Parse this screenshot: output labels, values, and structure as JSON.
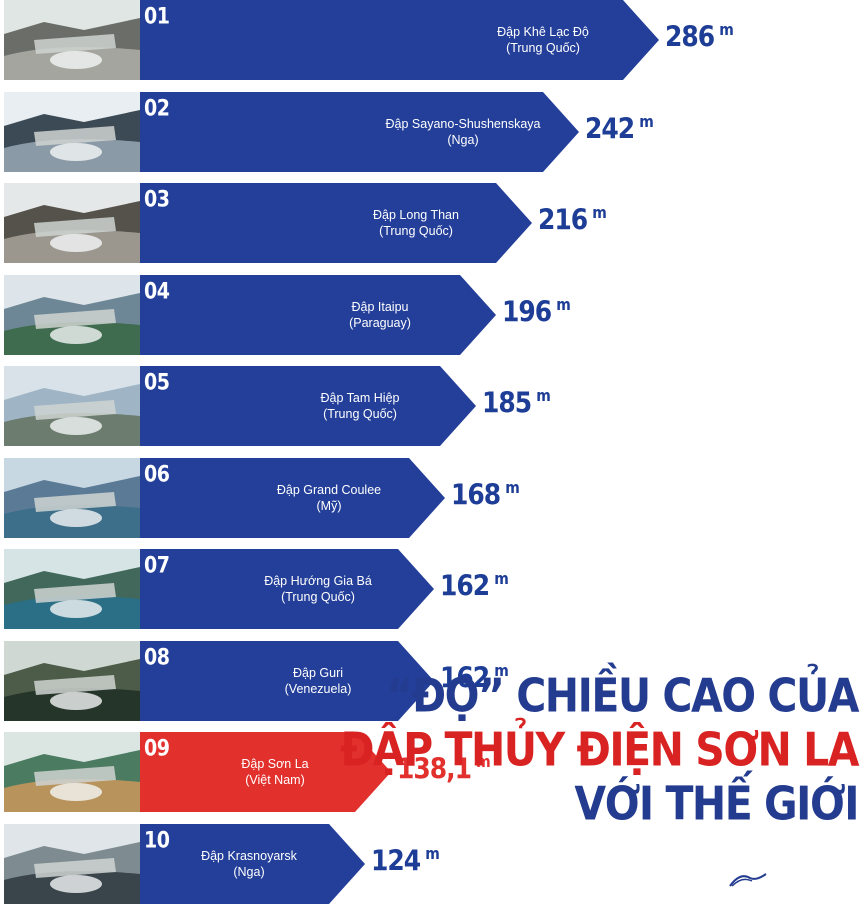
{
  "colors": {
    "bar": "#233f99",
    "highlight": "#e2302d",
    "value_text": "#1d3d96",
    "headline_blue": "#243c8f",
    "headline_red": "#d92323"
  },
  "chart_data": {
    "type": "bar",
    "orientation": "horizontal",
    "unit": "m",
    "items": [
      {
        "rank": "01",
        "name": "Đập Khê Lạc Độ",
        "country": "(Trung Quốc)",
        "value": 286,
        "value_label": "286",
        "highlight": false
      },
      {
        "rank": "02",
        "name": "Đập Sayano-Shushenskaya",
        "country": "(Nga)",
        "value": 242,
        "value_label": "242",
        "highlight": false
      },
      {
        "rank": "03",
        "name": "Đập Long Than",
        "country": "(Trung Quốc)",
        "value": 216,
        "value_label": "216",
        "highlight": false
      },
      {
        "rank": "04",
        "name": "Đập Itaipu",
        "country": "(Paraguay)",
        "value": 196,
        "value_label": "196",
        "highlight": false
      },
      {
        "rank": "05",
        "name": "Đập Tam Hiệp",
        "country": "(Trung Quốc)",
        "value": 185,
        "value_label": "185",
        "highlight": false
      },
      {
        "rank": "06",
        "name": "Đập Grand Coulee",
        "country": "(Mỹ)",
        "value": 168,
        "value_label": "168",
        "highlight": false
      },
      {
        "rank": "07",
        "name": "Đập Hướng Gia Bá",
        "country": "(Trung Quốc)",
        "value": 162,
        "value_label": "162",
        "highlight": false
      },
      {
        "rank": "08",
        "name": "Đập Guri",
        "country": "(Venezuela)",
        "value": 162,
        "value_label": "162",
        "highlight": false
      },
      {
        "rank": "09",
        "name": "Đập Sơn La",
        "country": "(Việt Nam)",
        "value": 138.1,
        "value_label": "138,1",
        "highlight": true
      },
      {
        "rank": "10",
        "name": "Đập Krasnoyarsk",
        "country": "(Nga)",
        "value": 124,
        "value_label": "124",
        "highlight": false
      }
    ]
  },
  "headline": {
    "line1": "“ĐỌ” CHIỀU CAO CỦA",
    "line2": "ĐẬP THỦY ĐIỆN SƠN LA",
    "line3": "VỚI THẾ GIỚI"
  },
  "icons": {
    "thumbnail": "dam-photo-icon",
    "logo": "publisher-logo-icon"
  }
}
